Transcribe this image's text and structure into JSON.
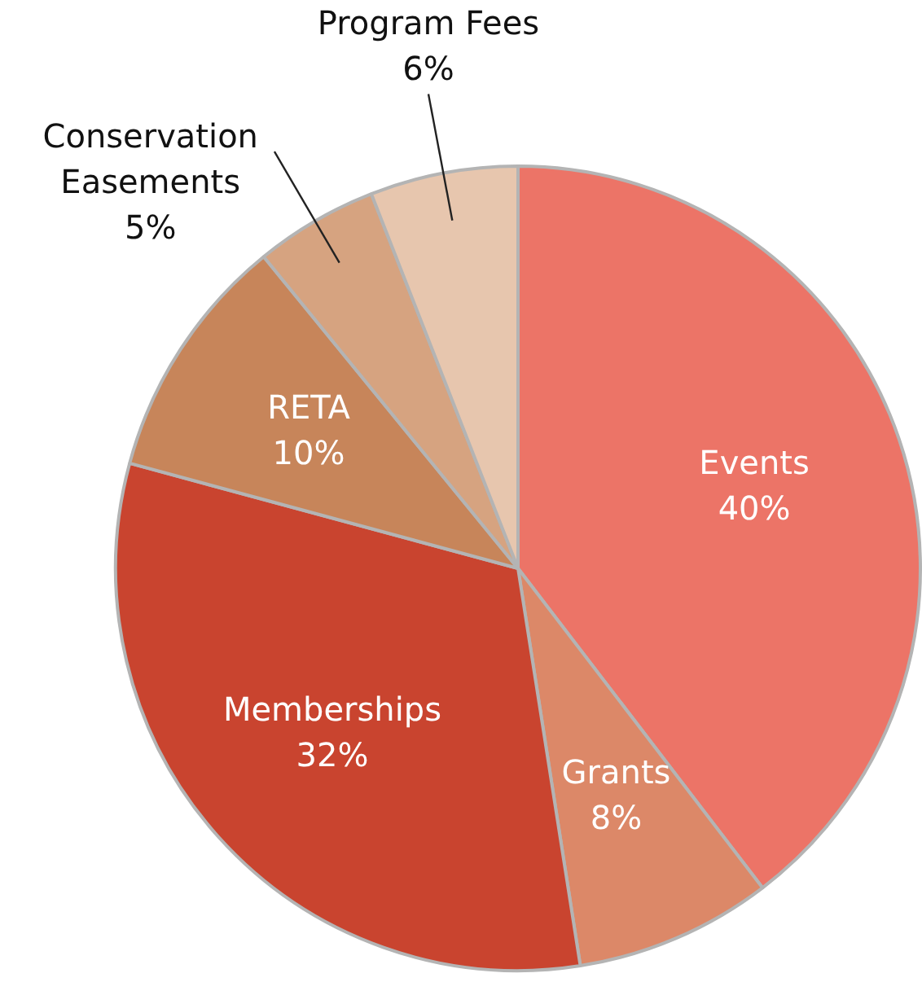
{
  "chart_data": {
    "type": "pie",
    "categories": [
      "Events",
      "Grants",
      "Memberships",
      "RETA",
      "Conservation Easements",
      "Program Fees"
    ],
    "values": [
      40,
      8,
      32,
      10,
      5,
      6
    ],
    "value_labels": [
      "40%",
      "8%",
      "32%",
      "10%",
      "5%",
      "6%"
    ],
    "colors": [
      "#ec7467",
      "#dc8868",
      "#c9442f",
      "#c7855a",
      "#d6a380",
      "#e7c6ae"
    ],
    "legend": false
  }
}
